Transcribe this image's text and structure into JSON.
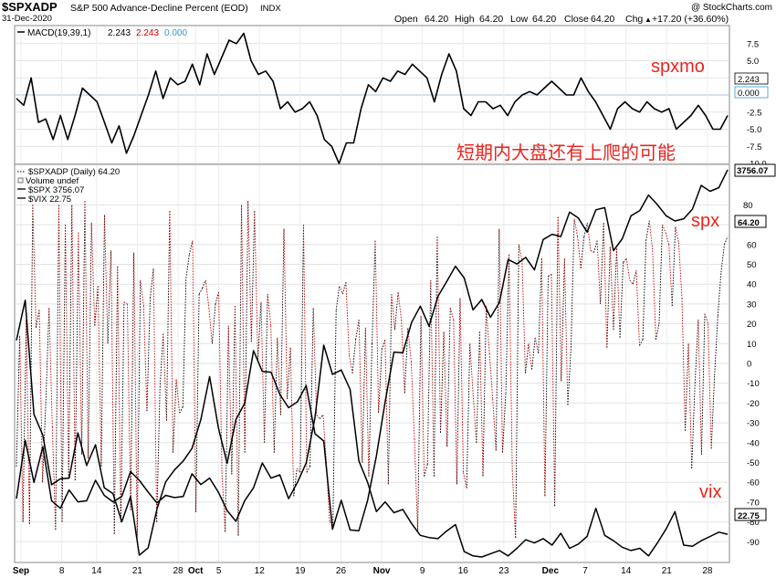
{
  "header": {
    "symbol": "$SPXADP",
    "name": "S&P 500 Advance-Decline Percent (EOD)",
    "exchange": "INDX",
    "date": "31-Dec-2020",
    "watermark": "@ StockCharts.com",
    "quote": {
      "open_label": "Open",
      "open": "64.20",
      "high_label": "High",
      "high": "64.20",
      "low_label": "Low",
      "low": "64.20",
      "close_label": "Close",
      "close": "64.20",
      "chg_label": "Chg",
      "chg": "+17.20 (+36.60%)",
      "up_arrow": "▲"
    }
  },
  "annotations": {
    "spxmo": "spxmo",
    "comment": "短期内大盘还有上爬的可能",
    "spx": "spx",
    "vix": "vix",
    "color": "#e8251f"
  },
  "chart_data": [
    {
      "type": "line",
      "legend": "MACD(19,39,1) 2.243, 2.243, 0.000",
      "legend_parts": {
        "name": "MACD(19,39,1)",
        "v1": "2.243",
        "v2": "2.243",
        "v3": "0.000"
      },
      "legend_colors": {
        "v2": "#cc0000",
        "v3": "#3399cc"
      },
      "ylim": [
        -10,
        10
      ],
      "y_ticks": [
        7.5,
        5.0,
        2.5,
        0.0,
        -2.5,
        -5.0,
        -7.5,
        -10.0
      ],
      "y_tick_labels": [
        "7.5",
        "5.0",
        "2.5",
        "0.000",
        "-2.5",
        "-5.0",
        "-7.5",
        "-10.0"
      ],
      "last_value_labels": [
        "2.243",
        "0.000"
      ],
      "grid": true,
      "series": [
        {
          "key": "macd",
          "color": "#000000",
          "values": [
            -0.5,
            -1.5,
            2.5,
            -4.0,
            -3.5,
            -6.5,
            -3.0,
            -6.5,
            -3.0,
            1.0,
            0.0,
            -1.0,
            -4.0,
            -7.0,
            -4.5,
            -8.5,
            -6.0,
            -3.0,
            0.0,
            3.5,
            -0.5,
            2.5,
            1.5,
            2.0,
            4.5,
            1.5,
            6.0,
            3.0,
            5.5,
            8.0,
            7.5,
            9.0,
            5.0,
            3.0,
            3.5,
            2.0,
            -2.0,
            -1.0,
            -2.5,
            -2.0,
            -1.0,
            -3.0,
            -6.5,
            -7.5,
            -10.0,
            -7.0,
            -7.0,
            -2.0,
            1.5,
            0.5,
            2.5,
            2.0,
            3.5,
            3.0,
            4.5,
            3.5,
            2.5,
            -1.0,
            3.0,
            6.0,
            3.5,
            -2.0,
            -3.0,
            -1.0,
            -1.0,
            -2.0,
            -1.5,
            -3.0,
            -1.0,
            0.0,
            0.5,
            0.0,
            1.0,
            2.0,
            1.0,
            0.0,
            0.0,
            2.5,
            0.5,
            -1.0,
            -3.0,
            -5.0,
            -2.0,
            -1.0,
            -2.0,
            -2.5,
            -1.0,
            -2.0,
            -2.5,
            -2.0,
            -5.0,
            -4.0,
            -3.0,
            -1.5,
            -3.0,
            -5.0,
            -5.0,
            -3.0
          ]
        }
      ]
    },
    {
      "type": "line",
      "legend": [
        "$SPXADP (Daily) 64.20",
        "Volume undef",
        "$SPX 3756.07",
        "$VIX 22.75"
      ],
      "ylim": [
        -100,
        100
      ],
      "y_ticks": [
        80,
        70,
        60,
        50,
        40,
        30,
        20,
        10,
        0,
        -10,
        -20,
        -30,
        -40,
        -50,
        -60,
        -70,
        -80,
        -90
      ],
      "y_tick_labels": [
        "80",
        "70",
        "60",
        "50",
        "40",
        "30",
        "20",
        "10",
        "0",
        "-10",
        "-20",
        "-30",
        "-40",
        "-50",
        "-60",
        "-70",
        "-80",
        "-90"
      ],
      "last_value_labels": {
        "spx": "3756.07",
        "adp": "64.20",
        "vix": "22.75"
      },
      "x_tick_labels": [
        "Sep",
        "8",
        "14",
        "21",
        "28",
        "Oct",
        "5",
        "12",
        "19",
        "26",
        "Nov",
        "9",
        "16",
        "23",
        "Dec",
        "7",
        "14",
        "21",
        "28"
      ],
      "x_tick_dates": [
        "2020-09-01",
        "2020-09-08",
        "2020-09-14",
        "2020-09-21",
        "2020-09-28",
        "2020-10-01",
        "2020-10-05",
        "2020-10-12",
        "2020-10-19",
        "2020-10-26",
        "2020-11-02",
        "2020-11-09",
        "2020-11-16",
        "2020-11-23",
        "2020-12-01",
        "2020-12-07",
        "2020-12-14",
        "2020-12-21",
        "2020-12-28"
      ],
      "x_bold_labels": [
        "Sep",
        "Oct",
        "Nov",
        "Dec"
      ],
      "grid": true,
      "series": [
        {
          "key": "adp",
          "name": "$SPXADP",
          "style": "dotted",
          "color_up": "#000000",
          "color_down": "#cc0000",
          "values": [
            -52,
            14,
            -80,
            22,
            -81,
            80,
            18,
            27,
            -60,
            -20,
            28,
            -32,
            -84,
            80,
            -80,
            70,
            -58,
            80,
            -59,
            66,
            -46,
            82,
            -48,
            71,
            19,
            39,
            -52,
            75,
            10,
            57,
            -86,
            49,
            -80,
            31,
            30,
            -74,
            56,
            -88,
            42,
            29,
            -24,
            33,
            48,
            -80,
            -12,
            15,
            -29,
            77,
            -45,
            -8,
            -25,
            -22,
            43,
            55,
            62,
            -75,
            35,
            38,
            42,
            28,
            10,
            30,
            36,
            -55,
            -85,
            19,
            -56,
            29,
            -87,
            80,
            -45,
            82,
            11,
            77,
            2,
            31,
            -40,
            35,
            19,
            -45,
            13,
            -26,
            68,
            -18,
            8,
            -67,
            -53,
            -55,
            70,
            -55,
            -52,
            28,
            -26,
            -28,
            -26,
            -50,
            -80,
            -82,
            27,
            39,
            35,
            41,
            4,
            -5,
            12,
            22,
            -50,
            18,
            -57,
            10,
            62,
            -25,
            7,
            12,
            -61,
            35,
            17,
            36,
            22,
            -15,
            18,
            1,
            -38,
            -85,
            24,
            -57,
            -51,
            42,
            -57,
            64,
            -35,
            16,
            -42,
            28,
            22,
            -61,
            33,
            -55,
            -63,
            10,
            -16,
            -40,
            16,
            -57,
            29,
            5,
            -18,
            -44,
            68,
            -45,
            -15,
            55,
            -54,
            -88,
            60,
            52,
            -5,
            10,
            -3,
            13,
            5,
            53,
            -67,
            44,
            45,
            -72,
            74,
            -9,
            53,
            -21,
            8,
            73,
            64,
            48,
            64,
            71,
            57,
            56,
            62,
            30,
            71,
            8,
            59,
            17,
            58,
            13,
            51,
            53,
            42,
            40,
            47,
            9,
            12,
            62,
            72,
            57,
            12,
            20,
            70,
            66,
            60,
            29,
            69,
            61,
            33,
            -34,
            10,
            -53,
            -10,
            22,
            -46,
            25,
            20,
            -43,
            -6,
            24,
            46,
            60,
            64
          ],
          "values_last": 64.2
        },
        {
          "key": "spx",
          "name": "$SPX",
          "color": "#000000",
          "values": [
            3526,
            3580,
            3426,
            3398,
            3331,
            3339,
            3340,
            3401,
            3357,
            3385,
            3327,
            3319,
            3281,
            3315,
            3236,
            3246,
            3298,
            3335,
            3351,
            3363,
            3380,
            3419,
            3477,
            3408,
            3360,
            3419,
            3441,
            3512,
            3484,
            3483,
            3453,
            3435,
            3443,
            3465,
            3400,
            3390,
            3271,
            3310,
            3270,
            3269,
            3310,
            3370,
            3443,
            3510,
            3509,
            3550,
            3572,
            3545,
            3585,
            3605,
            3626,
            3610,
            3567,
            3581,
            3557,
            3577,
            3635,
            3629,
            3638,
            3621,
            3662,
            3669,
            3666,
            3699,
            3691,
            3672,
            3702,
            3705,
            3647,
            3663,
            3694,
            3701,
            3722,
            3709,
            3694,
            3687,
            3690,
            3703,
            3735,
            3727,
            3732,
            3756
          ],
          "values_last": 3756.07
        },
        {
          "key": "vix",
          "name": "$VIX",
          "color": "#000000",
          "values": [
            26.1,
            31.5,
            27.6,
            30.9,
            25.9,
            25.2,
            26.9,
            25.8,
            25.9,
            27.8,
            26.4,
            25.8,
            26.3,
            28.6,
            27.8,
            26.7,
            25.7,
            26.4,
            26.2,
            26.3,
            28.4,
            27.4,
            28.0,
            26.7,
            25.0,
            24.0,
            25.9,
            27.1,
            29.4,
            28.0,
            28.3,
            26.1,
            27.6,
            29.4,
            33.6,
            40.3,
            37.6,
            38.0,
            36.2,
            29.6,
            27.6,
            24.9,
            25.8,
            24.8,
            25.1,
            23.8,
            22.7,
            22.5,
            22.4,
            23.1,
            23.7,
            21.2,
            20.8,
            20.7,
            21.0,
            21.3,
            20.8,
            21.5,
            22.3,
            22.0,
            22.4,
            21.8,
            22.9,
            21.5,
            21.9,
            22.6,
            25.2,
            22.7,
            22.2,
            21.6,
            21.3,
            21.5,
            20.8,
            22.0,
            23.3,
            24.9,
            21.8,
            21.7,
            22.2,
            22.6,
            23.0,
            22.8
          ],
          "values_last": 22.75
        }
      ]
    }
  ]
}
